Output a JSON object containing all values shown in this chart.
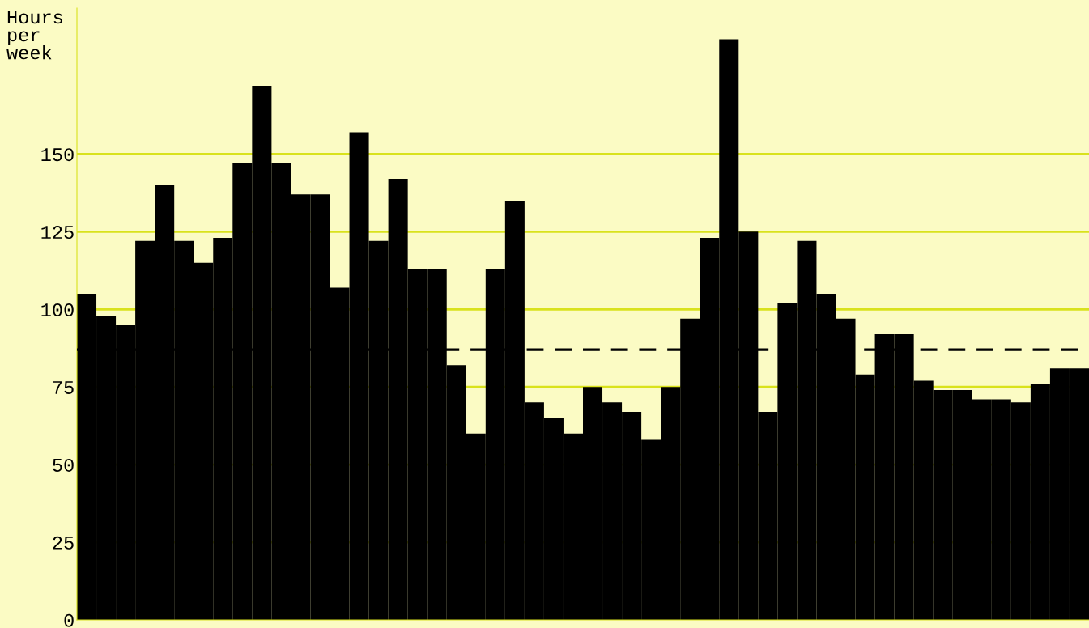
{
  "chart_data": {
    "type": "bar",
    "ylabel": "Hours\nper\nweek",
    "categories": [
      null,
      null,
      null,
      null,
      null,
      null,
      null,
      null,
      null,
      null,
      null,
      null,
      null,
      null,
      null,
      null,
      null,
      null,
      null,
      null,
      null,
      null,
      null,
      null,
      null,
      null,
      null,
      null,
      null,
      null,
      null,
      null,
      null,
      null,
      null,
      null,
      null,
      null,
      null,
      null,
      null,
      null,
      null,
      null,
      null,
      null,
      null,
      null,
      null,
      null,
      null,
      null
    ],
    "values": [
      105,
      98,
      95,
      122,
      140,
      122,
      115,
      123,
      147,
      172,
      147,
      137,
      137,
      107,
      157,
      122,
      142,
      113,
      113,
      82,
      60,
      113,
      135,
      70,
      65,
      60,
      75,
      70,
      67,
      58,
      75,
      97,
      123,
      187,
      125,
      67,
      102,
      122,
      105,
      97,
      79,
      92,
      92,
      77,
      74,
      74,
      71,
      71,
      70,
      76,
      81,
      81
    ],
    "color": "#000000",
    "ylim": [
      0,
      197
    ],
    "yticks": [
      0,
      25,
      50,
      75,
      100,
      125,
      150
    ],
    "ref_lines": [
      {
        "axis": "y",
        "value": 87,
        "color": "#000000",
        "line_style": "dashed"
      }
    ],
    "grid": "y",
    "tick_labels": "y"
  }
}
